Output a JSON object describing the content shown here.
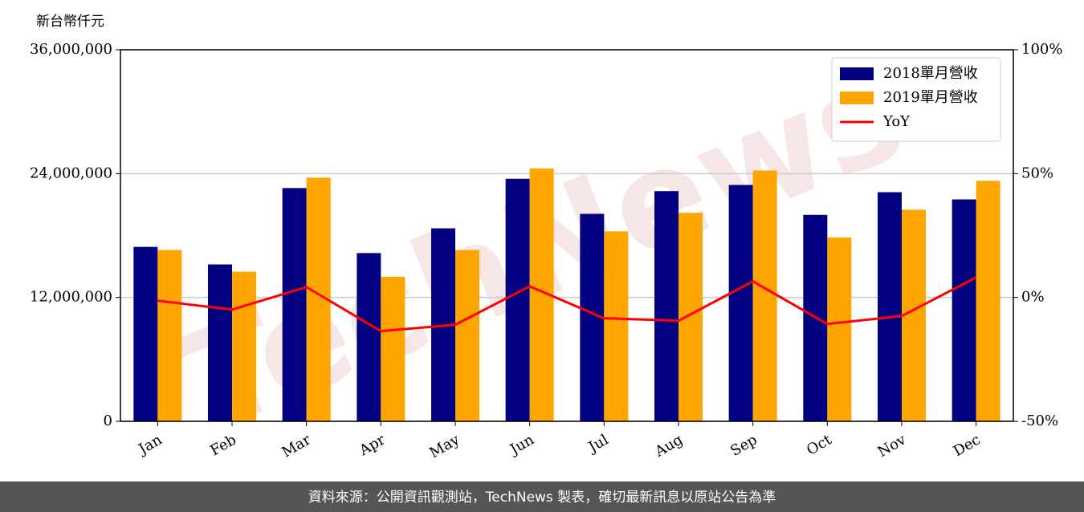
{
  "chart_data": {
    "type": "bar-line",
    "y_label": "新台幣仟元",
    "watermark": "TechNews",
    "footer": "資料來源：公開資訊觀測站，TechNews 製表，確切最新訊息以原站公告為準",
    "categories": [
      "Jan",
      "Feb",
      "Mar",
      "Apr",
      "May",
      "Jun",
      "Jul",
      "Aug",
      "Sep",
      "Oct",
      "Nov",
      "Dec"
    ],
    "series": [
      {
        "name": "2018單月營收",
        "color": "#000080",
        "kind": "bar",
        "values": [
          16900000,
          15200000,
          22600000,
          16300000,
          18700000,
          23500000,
          20100000,
          22300000,
          22900000,
          20000000,
          22200000,
          21500000
        ]
      },
      {
        "name": "2019單月營收",
        "color": "#ffa500",
        "kind": "bar",
        "values": [
          16600000,
          14500000,
          23600000,
          14000000,
          16600000,
          24500000,
          18400000,
          20200000,
          24300000,
          17800000,
          20500000,
          23300000
        ]
      },
      {
        "name": "YoY",
        "color": "#ff0000",
        "kind": "line",
        "axis": "y2",
        "values": [
          -1.3,
          -4.9,
          4.2,
          -13.6,
          -11.0,
          4.5,
          -8.4,
          -9.4,
          6.5,
          -10.7,
          -7.5,
          8.1
        ]
      }
    ],
    "ylim": [
      0,
      36000000
    ],
    "yticks": [
      0,
      {
        "value": 12000000,
        "label": "12,000,000"
      },
      {
        "value": 24000000,
        "label": "24,000,000"
      },
      {
        "value": 36000000,
        "label": "36,000,000"
      }
    ],
    "y2lim": [
      -50,
      100
    ],
    "y2ticks": [
      {
        "value": -50,
        "label": "-50%"
      },
      {
        "value": 0,
        "label": "0%"
      },
      {
        "value": 50,
        "label": "50%"
      },
      {
        "value": 100,
        "label": "100%"
      }
    ],
    "grid": true,
    "legend": "upper right"
  }
}
